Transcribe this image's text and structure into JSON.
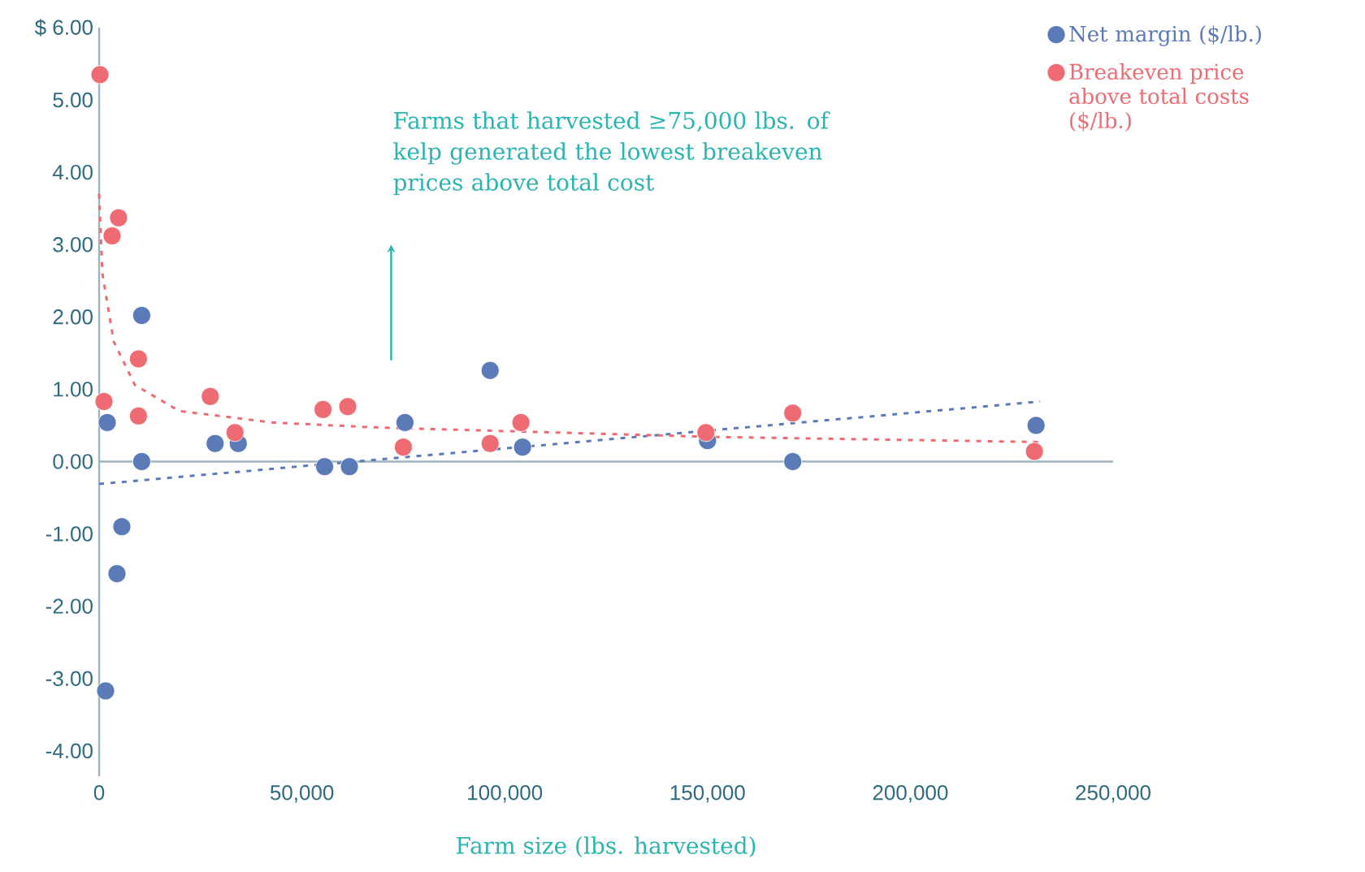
{
  "chart_data": {
    "type": "scatter",
    "xlabel": "Farm size (lbs. harvested)",
    "annotations": [
      "Farms that harvested ≥75,000 lbs. of kelp generated the lowest breakeven prices above total cost"
    ],
    "xlim": [
      0,
      250000
    ],
    "ylim": [
      -4.35,
      6
    ],
    "xticks": [
      {
        "value": 0,
        "label": "0"
      },
      {
        "value": 50000,
        "label": "50,000"
      },
      {
        "value": 100000,
        "label": "100,000"
      },
      {
        "value": 150000,
        "label": "150,000"
      },
      {
        "value": 200000,
        "label": "200,000"
      },
      {
        "value": 250000,
        "label": "250,000"
      }
    ],
    "yticks": [
      {
        "value": -4,
        "label": "-4.00"
      },
      {
        "value": -3,
        "label": "-3.00"
      },
      {
        "value": -2,
        "label": "-2.00"
      },
      {
        "value": -1,
        "label": "-1.00"
      },
      {
        "value": 0,
        "label": "0.00"
      },
      {
        "value": 1,
        "label": "1.00"
      },
      {
        "value": 2,
        "label": "2.00"
      },
      {
        "value": 3,
        "label": "3.00"
      },
      {
        "value": 4,
        "label": "4.00"
      },
      {
        "value": 5,
        "label": "5.00"
      },
      {
        "value": 6,
        "label": "$ 6.00"
      }
    ],
    "legend": "top right",
    "marker": "circle",
    "series": [
      {
        "name": "Net margin ($/lb.)",
        "color": "#5a7bb8",
        "x": [
          2000,
          1600,
          4400,
          5600,
          10500,
          10500,
          28600,
          34300,
          55600,
          61700,
          75400,
          96400,
          104400,
          150000,
          171000,
          231000
        ],
        "values": [
          0.54,
          -3.17,
          -1.55,
          -0.9,
          2.02,
          0.0,
          0.25,
          0.25,
          -0.07,
          -0.07,
          0.54,
          1.26,
          0.2,
          0.29,
          0.0,
          0.5
        ]
      },
      {
        "name": "Breakeven price above total costs ($/lb.)",
        "color": "#ef6b73",
        "x": [
          200,
          1200,
          3200,
          4800,
          9700,
          9700,
          27400,
          33500,
          55200,
          61300,
          75000,
          96400,
          104000,
          149600,
          171000,
          230600
        ],
        "values": [
          5.35,
          0.83,
          3.12,
          3.37,
          1.42,
          0.63,
          0.9,
          0.4,
          0.72,
          0.76,
          0.2,
          0.25,
          0.54,
          0.4,
          0.67,
          0.14
        ]
      },
      {
        "type": "line",
        "line_style": "dashed",
        "marker": "none",
        "color": "#5a7bb8",
        "x": [
          0,
          232000
        ],
        "values": [
          -0.31,
          0.83
        ]
      },
      {
        "type": "line",
        "line_style": "dashed",
        "marker": "none",
        "color": "#ef6b73",
        "x": [
          0,
          800,
          3600,
          8800,
          19700,
          42700,
          69000,
          152000,
          232000
        ],
        "values": [
          3.7,
          2.6,
          1.66,
          1.06,
          0.7,
          0.54,
          0.47,
          0.34,
          0.27
        ]
      }
    ]
  }
}
